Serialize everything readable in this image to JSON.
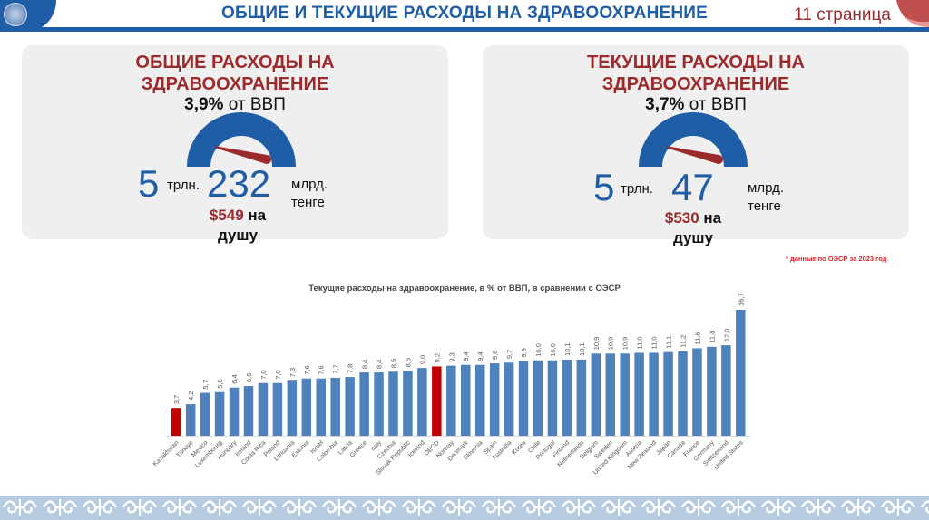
{
  "header": {
    "title": "ОБЩИЕ И ТЕКУЩИЕ РАСХОДЫ НА ЗДРАВООХРАНЕНИЕ",
    "page_label": "11 страница",
    "logo_icon": "state-emblem-icon",
    "corner_icon": "page-curl-icon"
  },
  "colors": {
    "brand_blue": "#1f5ea6",
    "accent_red": "#9b2a2c",
    "bar_blue": "#4f81bd",
    "bar_highlight": "#c00000",
    "card_bg": "#efefef"
  },
  "cards": [
    {
      "title_line1": "ОБЩИЕ РАСХОДЫ НА",
      "title_line2": "ЗДРАВООХРАНЕНИЕ",
      "gdp_value": "3,9%",
      "gdp_suffix": " от ВВП",
      "gauge_share": 0.039,
      "trillions": "5",
      "trillions_unit": "трлн.",
      "billions": "232",
      "billions_unit_line1": "млрд.",
      "billions_unit_line2": "тенге",
      "per_capita": "$549",
      "per_capita_suffix": " на",
      "per_capita_line2": "душу"
    },
    {
      "title_line1": "ТЕКУЩИЕ РАСХОДЫ НА",
      "title_line2": "ЗДРАВООХРАНЕНИЕ",
      "gdp_value": "3,7%",
      "gdp_suffix": " от ВВП",
      "gauge_share": 0.037,
      "trillions": "5",
      "trillions_unit": "трлн.",
      "billions": "47",
      "billions_unit_line1": "млрд.",
      "billions_unit_line2": "тенге",
      "per_capita": "$530",
      "per_capita_suffix": " на",
      "per_capita_line2": "душу"
    }
  ],
  "footnote": "* данные по ОЭСР за 2023 год",
  "chart_data": {
    "type": "bar",
    "title": "Текущие расходы на здравоохранение, в % от ВВП, в сравнении с ОЭСР",
    "xlabel": "",
    "ylabel": "",
    "ylim": [
      0,
      16.7
    ],
    "grid": false,
    "legend": "none",
    "label_format": "comma-decimal",
    "categories": [
      "Kazakhstan",
      "Türkiye",
      "Mexico",
      "Luxembourg",
      "Hungary",
      "Ireland",
      "Costa Rica",
      "Poland",
      "Lithuania",
      "Estonia",
      "Israel",
      "Colombia",
      "Latvia",
      "Greece",
      "Italy",
      "Czechia",
      "Slovak Republic",
      "Iceland",
      "OECD",
      "Norway",
      "Denmark",
      "Slovenia",
      "Spain",
      "Australia",
      "Korea",
      "Chile",
      "Portugal",
      "Finland",
      "Netherlands",
      "Belgium",
      "Sweden",
      "United Kingdom",
      "Austria",
      "New Zealand",
      "Japan",
      "Canada",
      "France",
      "Germany",
      "Switzerland",
      "United States"
    ],
    "values": [
      3.7,
      4.2,
      5.7,
      5.8,
      6.4,
      6.6,
      7.0,
      7.0,
      7.3,
      7.6,
      7.6,
      7.7,
      7.8,
      8.4,
      8.4,
      8.5,
      8.6,
      9.0,
      9.2,
      9.3,
      9.4,
      9.4,
      9.6,
      9.7,
      9.9,
      10.0,
      10.0,
      10.1,
      10.1,
      10.9,
      10.9,
      10.9,
      11.0,
      11.0,
      11.1,
      11.2,
      11.6,
      11.8,
      12.0,
      16.7
    ],
    "highlighted": [
      "Kazakhstan",
      "OECD"
    ]
  }
}
